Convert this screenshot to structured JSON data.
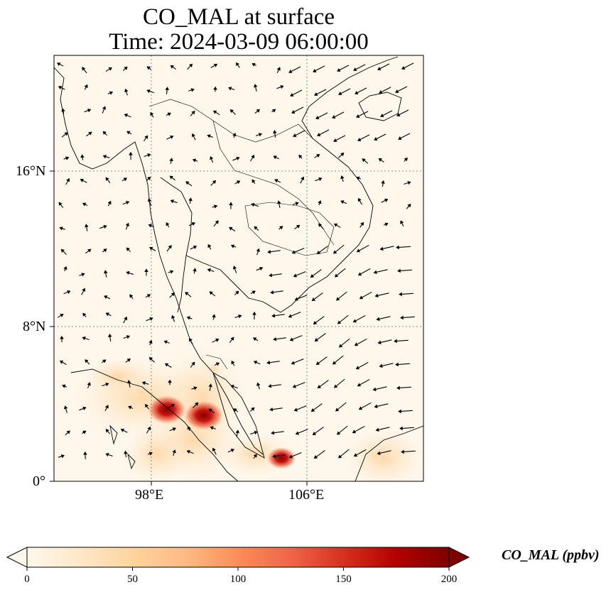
{
  "title": {
    "line1": "CO_MAL at surface",
    "line2": "Time: 2024-03-09 06:00:00"
  },
  "axes": {
    "lat_ticks": [
      "16°N",
      "8°N",
      "0°"
    ],
    "lon_ticks": [
      "98°E",
      "106°E"
    ]
  },
  "colorbar": {
    "label": "CO_MAL (ppbv)",
    "ticks": [
      "0",
      "50",
      "100",
      "150",
      "200"
    ],
    "min": 0,
    "max": 200,
    "colormap": "OrRd",
    "extend": "both",
    "colors": [
      "#fff7ec",
      "#fee8c8",
      "#fdd49e",
      "#fdbb84",
      "#fc8d59",
      "#ef6548",
      "#d7301f",
      "#b30000",
      "#7f0000"
    ]
  },
  "map": {
    "projection": "PlateCarree",
    "lon_range": [
      93,
      112
    ],
    "lat_range": [
      0,
      22
    ],
    "gridlines": true,
    "field": "CO_MAL",
    "hotspots_ppbv": [
      {
        "lon": 98.8,
        "lat": 3.7,
        "value": 170
      },
      {
        "lon": 100.7,
        "lat": 3.4,
        "value": 175
      },
      {
        "lon": 104.7,
        "lat": 1.2,
        "value": 110
      },
      {
        "lon": 97.5,
        "lat": 4.6,
        "value": 35
      },
      {
        "lon": 101.2,
        "lat": 5.8,
        "value": 30
      },
      {
        "lon": 109.5,
        "lat": 1.3,
        "value": 25
      }
    ],
    "wind_vectors": "quiver field"
  }
}
